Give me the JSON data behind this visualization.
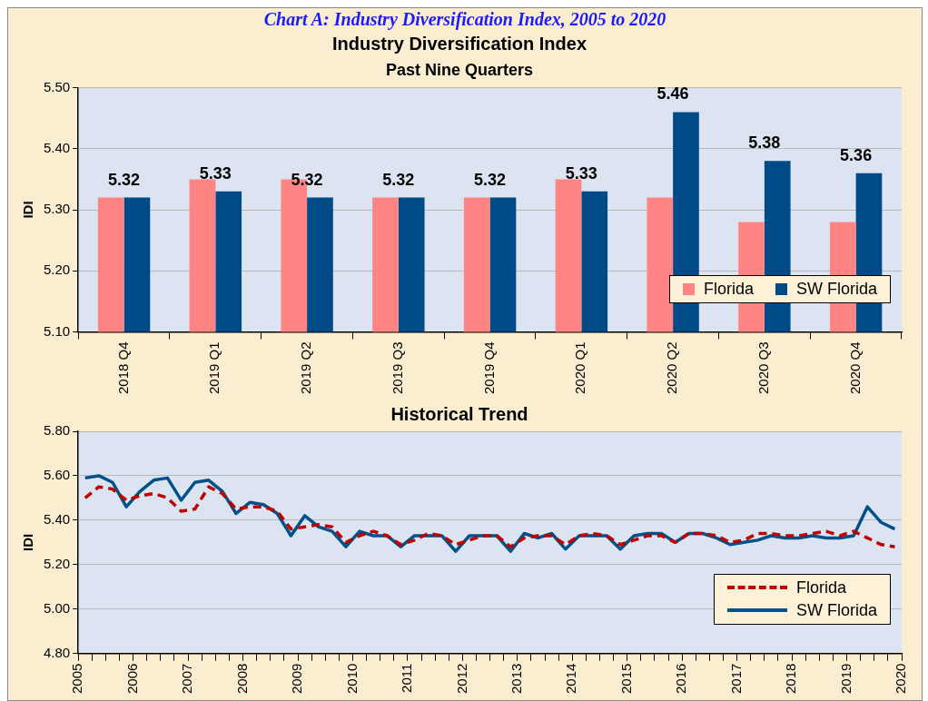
{
  "chart_data": [
    {
      "type": "bar",
      "title": "Industry Diversification Index",
      "subtitle": "Past Nine Quarters",
      "ylabel": "IDI",
      "annotations": [
        "Chart A: Industry Diversification Index, 2005 to 2020"
      ],
      "categories": [
        "2018 Q4",
        "2019 Q1",
        "2019 Q2",
        "2019 Q3",
        "2019 Q4",
        "2020 Q1",
        "2020 Q2",
        "2020 Q3",
        "2020 Q4"
      ],
      "series": [
        {
          "name": "Florida",
          "color": "#ff8585",
          "values": [
            5.32,
            5.35,
            5.35,
            5.32,
            5.32,
            5.35,
            5.32,
            5.28,
            5.28
          ]
        },
        {
          "name": "SW Florida",
          "color": "#004b87",
          "values": [
            5.32,
            5.33,
            5.32,
            5.32,
            5.32,
            5.33,
            5.46,
            5.38,
            5.36
          ],
          "value_labels": [
            "5.32",
            "5.33",
            "5.32",
            "5.32",
            "5.32",
            "5.33",
            "5.46",
            "5.38",
            "5.36"
          ]
        }
      ],
      "ylim": [
        5.1,
        5.5
      ],
      "yticks": [
        {
          "value": 5.1,
          "label": "5.10"
        },
        {
          "value": 5.2,
          "label": "5.20"
        },
        {
          "value": 5.3,
          "label": "5.30"
        },
        {
          "value": 5.4,
          "label": "5.40"
        },
        {
          "value": 5.5,
          "label": "5.50"
        }
      ],
      "grid": "y",
      "legend": "bottom right"
    },
    {
      "type": "line",
      "title": "Historical Trend",
      "ylabel": "IDI",
      "x": [
        2005.125,
        2005.375,
        2005.625,
        2005.875,
        2006.125,
        2006.375,
        2006.625,
        2006.875,
        2007.125,
        2007.375,
        2007.625,
        2007.875,
        2008.125,
        2008.375,
        2008.625,
        2008.875,
        2009.125,
        2009.375,
        2009.625,
        2009.875,
        2010.125,
        2010.375,
        2010.625,
        2010.875,
        2011.125,
        2011.375,
        2011.625,
        2011.875,
        2012.125,
        2012.375,
        2012.625,
        2012.875,
        2013.125,
        2013.375,
        2013.625,
        2013.875,
        2014.125,
        2014.375,
        2014.625,
        2014.875,
        2015.125,
        2015.375,
        2015.625,
        2015.875,
        2016.125,
        2016.375,
        2016.625,
        2016.875,
        2017.125,
        2017.375,
        2017.625,
        2017.875,
        2018.125,
        2018.375,
        2018.625,
        2018.875,
        2019.125,
        2019.375,
        2019.625,
        2019.875
      ],
      "series": [
        {
          "name": "Florida",
          "color": "#c00000",
          "line_style": "dashed",
          "values": [
            5.5,
            5.55,
            5.54,
            5.49,
            5.51,
            5.52,
            5.5,
            5.44,
            5.45,
            5.55,
            5.52,
            5.45,
            5.46,
            5.46,
            5.44,
            5.36,
            5.37,
            5.38,
            5.37,
            5.3,
            5.33,
            5.35,
            5.33,
            5.29,
            5.31,
            5.34,
            5.33,
            5.29,
            5.31,
            5.33,
            5.33,
            5.28,
            5.32,
            5.33,
            5.33,
            5.29,
            5.33,
            5.34,
            5.33,
            5.29,
            5.31,
            5.33,
            5.33,
            5.3,
            5.34,
            5.34,
            5.33,
            5.3,
            5.31,
            5.34,
            5.34,
            5.33,
            5.33,
            5.34,
            5.35,
            5.33,
            5.35,
            5.32,
            5.29,
            5.28
          ]
        },
        {
          "name": "SW Florida",
          "color": "#005189",
          "line_style": "solid",
          "values": [
            5.59,
            5.6,
            5.57,
            5.46,
            5.53,
            5.58,
            5.59,
            5.49,
            5.57,
            5.58,
            5.53,
            5.43,
            5.48,
            5.47,
            5.43,
            5.33,
            5.42,
            5.37,
            5.35,
            5.28,
            5.35,
            5.33,
            5.33,
            5.28,
            5.33,
            5.33,
            5.33,
            5.26,
            5.33,
            5.33,
            5.33,
            5.26,
            5.34,
            5.32,
            5.34,
            5.27,
            5.33,
            5.33,
            5.33,
            5.27,
            5.33,
            5.34,
            5.34,
            5.3,
            5.34,
            5.34,
            5.32,
            5.29,
            5.3,
            5.31,
            5.33,
            5.32,
            5.32,
            5.33,
            5.32,
            5.32,
            5.33,
            5.46,
            5.39,
            5.36
          ]
        }
      ],
      "xlim": [
        2005,
        2020
      ],
      "xticks": [
        2005,
        {
          "value": 2005.25,
          "label": null
        },
        {
          "value": 2005.5,
          "label": null
        },
        {
          "value": 2005.75,
          "label": null
        },
        2006,
        {
          "value": 2006.25,
          "label": null
        },
        {
          "value": 2006.5,
          "label": null
        },
        {
          "value": 2006.75,
          "label": null
        },
        2007,
        {
          "value": 2007.25,
          "label": null
        },
        {
          "value": 2007.5,
          "label": null
        },
        {
          "value": 2007.75,
          "label": null
        },
        2008,
        {
          "value": 2008.25,
          "label": null
        },
        {
          "value": 2008.5,
          "label": null
        },
        {
          "value": 2008.75,
          "label": null
        },
        2009,
        {
          "value": 2009.25,
          "label": null
        },
        {
          "value": 2009.5,
          "label": null
        },
        {
          "value": 2009.75,
          "label": null
        },
        2010,
        {
          "value": 2010.25,
          "label": null
        },
        {
          "value": 2010.5,
          "label": null
        },
        {
          "value": 2010.75,
          "label": null
        },
        2011,
        {
          "value": 2011.25,
          "label": null
        },
        {
          "value": 2011.5,
          "label": null
        },
        {
          "value": 2011.75,
          "label": null
        },
        2012,
        {
          "value": 2012.25,
          "label": null
        },
        {
          "value": 2012.5,
          "label": null
        },
        {
          "value": 2012.75,
          "label": null
        },
        2013,
        {
          "value": 2013.25,
          "label": null
        },
        {
          "value": 2013.5,
          "label": null
        },
        {
          "value": 2013.75,
          "label": null
        },
        2014,
        {
          "value": 2014.25,
          "label": null
        },
        {
          "value": 2014.5,
          "label": null
        },
        {
          "value": 2014.75,
          "label": null
        },
        2015,
        {
          "value": 2015.25,
          "label": null
        },
        {
          "value": 2015.5,
          "label": null
        },
        {
          "value": 2015.75,
          "label": null
        },
        2016,
        {
          "value": 2016.25,
          "label": null
        },
        {
          "value": 2016.5,
          "label": null
        },
        {
          "value": 2016.75,
          "label": null
        },
        2017,
        {
          "value": 2017.25,
          "label": null
        },
        {
          "value": 2017.5,
          "label": null
        },
        {
          "value": 2017.75,
          "label": null
        },
        2018,
        {
          "value": 2018.25,
          "label": null
        },
        {
          "value": 2018.5,
          "label": null
        },
        {
          "value": 2018.75,
          "label": null
        },
        2019,
        {
          "value": 2019.25,
          "label": null
        },
        {
          "value": 2019.5,
          "label": null
        },
        {
          "value": 2019.75,
          "label": null
        },
        2020
      ],
      "ylim": [
        4.8,
        5.8
      ],
      "yticks": [
        {
          "value": 4.8,
          "label": "4.80"
        },
        {
          "value": 5.0,
          "label": "5.00"
        },
        {
          "value": 5.2,
          "label": "5.20"
        },
        {
          "value": 5.4,
          "label": "5.40"
        },
        {
          "value": 5.6,
          "label": "5.60"
        },
        {
          "value": 5.8,
          "label": "5.80"
        }
      ],
      "grid": "y",
      "legend": "bottom right",
      "marker": "none"
    }
  ]
}
